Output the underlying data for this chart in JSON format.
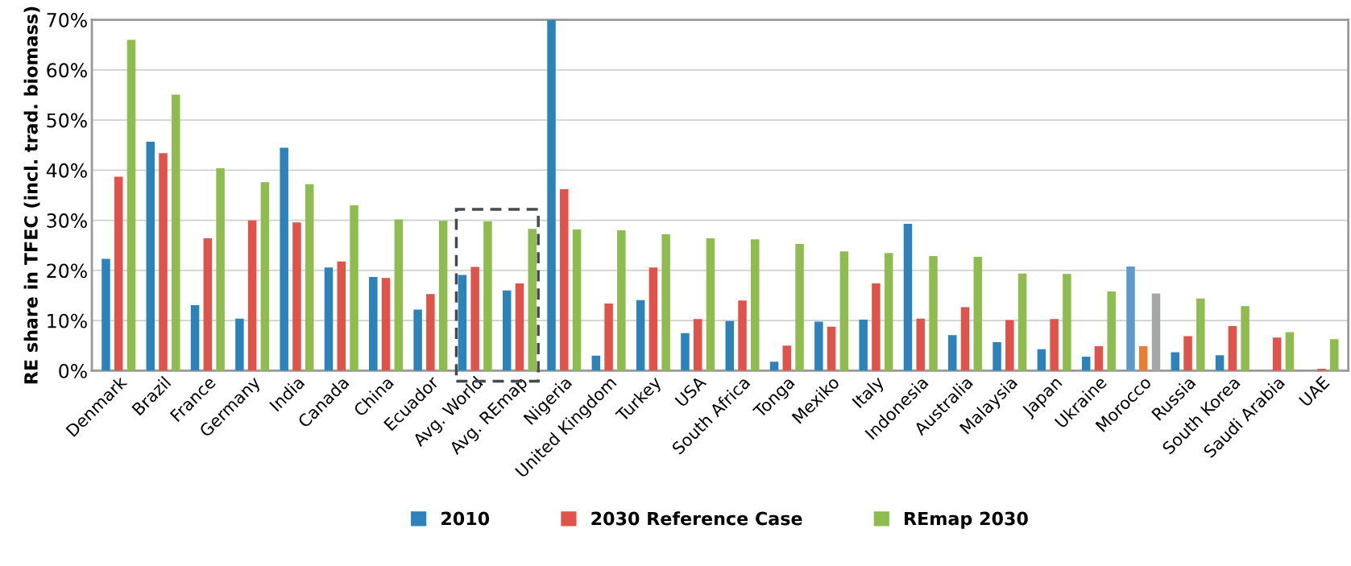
{
  "chart_data": {
    "type": "bar",
    "ylabel": "RE share in TFEC (incl. trad. biomass)",
    "categories": [
      "Denmark",
      "Brazil",
      "France",
      "Germany",
      "India",
      "Canada",
      "China",
      "Ecuador",
      "Avg. World",
      "Avg. REmap",
      "Nigeria",
      "United Kingdom",
      "Turkey",
      "USA",
      "South Africa",
      "Tonga",
      "Mexiko",
      "Italy",
      "Indonesia",
      "Australia",
      "Malaysia",
      "Japan",
      "Ukraine",
      "Morocco",
      "Russia",
      "South Korea",
      "Saudi Arabia",
      "UAE"
    ],
    "series": [
      {
        "name": "2010",
        "color": "#2b83ba",
        "colors": [
          "#2b83ba",
          "#2b83ba",
          "#2b83ba",
          "#2b83ba",
          "#2b83ba",
          "#2b83ba",
          "#2b83ba",
          "#2b83ba",
          "#2b83ba",
          "#2b83ba",
          "#2b83ba",
          "#2b83ba",
          "#2b83ba",
          "#2b83ba",
          "#2b83ba",
          "#2b83ba",
          "#2b83ba",
          "#2b83ba",
          "#2b83ba",
          "#2b83ba",
          "#2b83ba",
          "#2b83ba",
          "#2b83ba",
          "#5b9bca",
          "#2b83ba",
          "#2b83ba",
          "#2b83ba",
          "#2b83ba"
        ],
        "values": [
          22.3,
          45.7,
          13.1,
          10.4,
          44.5,
          20.6,
          18.7,
          12.2,
          19.1,
          16.0,
          70,
          3.0,
          14.1,
          7.5,
          9.9,
          1.8,
          9.8,
          10.2,
          29.3,
          7.1,
          5.7,
          4.3,
          2.8,
          20.8,
          3.7,
          3.1,
          null,
          null
        ]
      },
      {
        "name": "2030 Reference Case",
        "color": "#e0534a",
        "colors": [
          "#e0534a",
          "#e0534a",
          "#e0534a",
          "#e0534a",
          "#e0534a",
          "#e0534a",
          "#e0534a",
          "#e0534a",
          "#e0534a",
          "#e0534a",
          "#e0534a",
          "#e0534a",
          "#e0534a",
          "#e0534a",
          "#e0534a",
          "#e0534a",
          "#e0534a",
          "#e0534a",
          "#e0534a",
          "#e0534a",
          "#e0534a",
          "#e0534a",
          "#e0534a",
          "#e67e35",
          "#e0534a",
          "#e0534a",
          "#e0534a",
          "#e0534a"
        ],
        "values": [
          38.7,
          43.4,
          26.4,
          30.0,
          29.6,
          21.8,
          18.5,
          15.3,
          20.7,
          17.4,
          36.2,
          13.4,
          20.6,
          10.3,
          14.0,
          5.0,
          8.8,
          17.4,
          10.4,
          12.7,
          10.1,
          10.3,
          4.9,
          4.9,
          6.9,
          8.9,
          6.6,
          0.4
        ]
      },
      {
        "name": "REmap 2030",
        "color": "#8fbc4f",
        "colors": [
          "#8fbc4f",
          "#8fbc4f",
          "#8fbc4f",
          "#8fbc4f",
          "#8fbc4f",
          "#8fbc4f",
          "#8fbc4f",
          "#8fbc4f",
          "#8fbc4f",
          "#8fbc4f",
          "#8fbc4f",
          "#8fbc4f",
          "#8fbc4f",
          "#8fbc4f",
          "#8fbc4f",
          "#8fbc4f",
          "#8fbc4f",
          "#8fbc4f",
          "#8fbc4f",
          "#8fbc4f",
          "#8fbc4f",
          "#8fbc4f",
          "#8fbc4f",
          "#a5a7a7",
          "#8fbc4f",
          "#8fbc4f",
          "#8fbc4f",
          "#8fbc4f"
        ],
        "values": [
          66.0,
          55.1,
          40.4,
          37.6,
          37.2,
          33.0,
          30.2,
          29.9,
          29.8,
          28.3,
          28.2,
          28.0,
          27.2,
          26.4,
          26.2,
          25.3,
          23.8,
          23.5,
          22.9,
          22.7,
          19.4,
          19.3,
          15.8,
          15.4,
          14.4,
          12.9,
          7.7,
          6.3
        ]
      }
    ],
    "ylim": [
      0,
      70
    ],
    "yticks": [
      {
        "value": 0,
        "label": "0%"
      },
      {
        "value": 10,
        "label": "10%"
      },
      {
        "value": 20,
        "label": "20%"
      },
      {
        "value": 30,
        "label": "30%"
      },
      {
        "value": 40,
        "label": "40%"
      },
      {
        "value": 50,
        "label": "50%"
      },
      {
        "value": 60,
        "label": "60%"
      },
      {
        "value": 70,
        "label": "70%"
      }
    ],
    "grid": "y",
    "legend": "bottom"
  }
}
